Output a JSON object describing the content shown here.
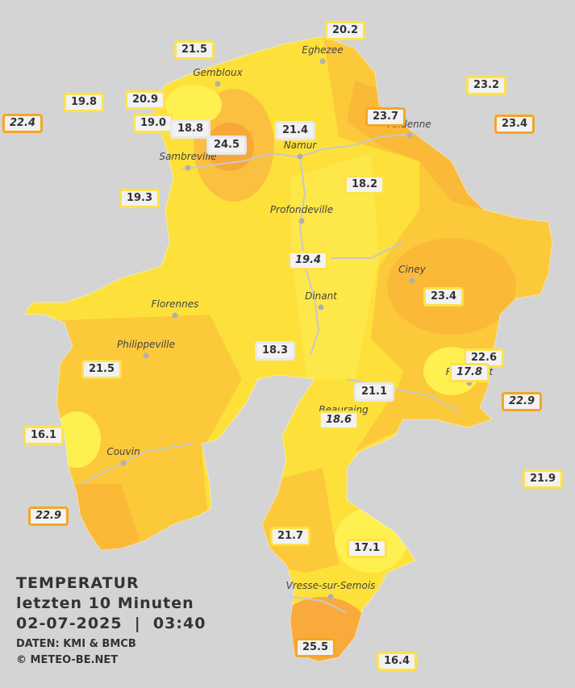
{
  "stations": [
    {
      "text": "20.2"
    },
    {
      "text": "21.5"
    },
    {
      "text": "23.2"
    },
    {
      "text": "19.8"
    },
    {
      "text": "20.9"
    },
    {
      "text": "22.4"
    },
    {
      "text": "19.0"
    },
    {
      "text": "18.8"
    },
    {
      "text": "21.4"
    },
    {
      "text": "23.7"
    },
    {
      "text": "23.4"
    },
    {
      "text": "24.5"
    },
    {
      "text": "18.2"
    },
    {
      "text": "19.3"
    },
    {
      "text": "19.4"
    },
    {
      "text": "23.4"
    },
    {
      "text": "18.3"
    },
    {
      "text": "21.5"
    },
    {
      "text": "22.6"
    },
    {
      "text": "17.8"
    },
    {
      "text": "21.1"
    },
    {
      "text": "22.9"
    },
    {
      "text": "18.6"
    },
    {
      "text": "16.1"
    },
    {
      "text": "21.9"
    },
    {
      "text": "22.9"
    },
    {
      "text": "21.7"
    },
    {
      "text": "17.1"
    },
    {
      "text": "25.5"
    },
    {
      "text": "16.4"
    }
  ],
  "towns": [
    "Eghezee",
    "Gembloux",
    "Andenne",
    "Namur",
    "Sambreville",
    "Profondeville",
    "Ciney",
    "Dinant",
    "Florennes",
    "Philippeville",
    "Rochefort",
    "Beauraing",
    "Couvin",
    "Vresse-sur-Semois"
  ],
  "caption": {
    "title": "TEMPERATUR",
    "subtitle": "letzten 10 Minuten",
    "datetime": "02-07-2025  |  03:40",
    "source": "DATEN: KMI & BMCB",
    "copyright": "© METEO-BE.NET"
  }
}
